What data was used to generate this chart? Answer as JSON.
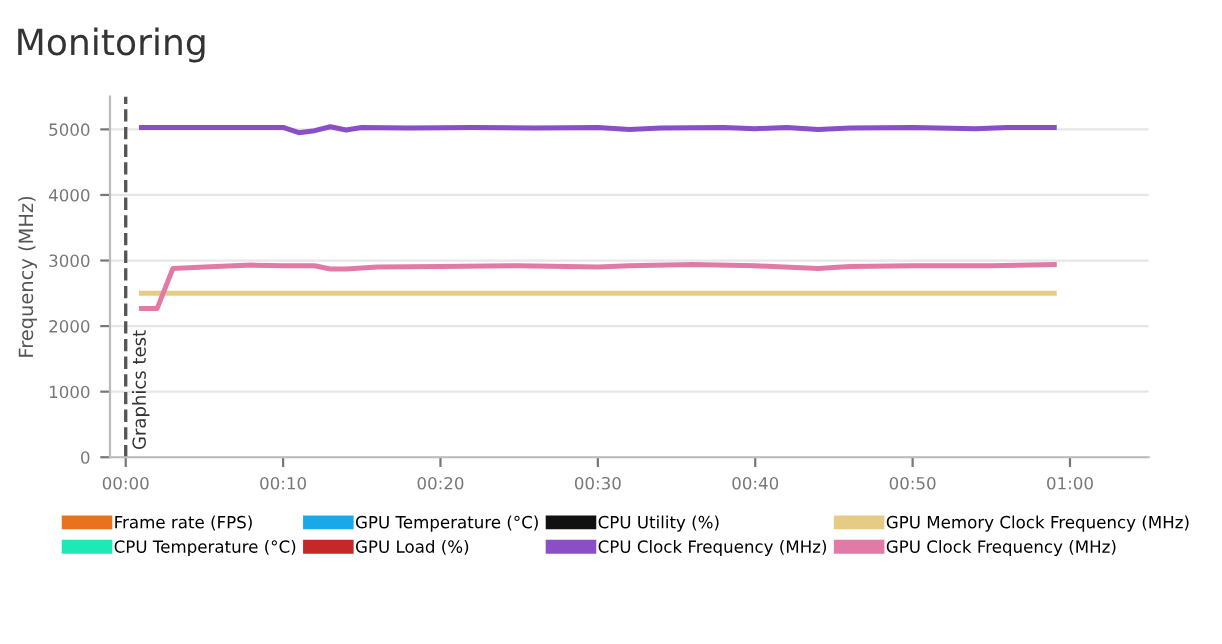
{
  "chart_data": {
    "type": "line",
    "title": "Monitoring",
    "ylabel": "Frequency (MHz)",
    "xlim": [
      -1,
      65
    ],
    "xticks": [
      {
        "value": 0,
        "label": "00:00"
      },
      {
        "value": 10,
        "label": "00:10"
      },
      {
        "value": 20,
        "label": "00:20"
      },
      {
        "value": 30,
        "label": "00:30"
      },
      {
        "value": 40,
        "label": "00:40"
      },
      {
        "value": 50,
        "label": "00:50"
      },
      {
        "value": 60,
        "label": "01:00"
      }
    ],
    "ylim": [
      0,
      5500
    ],
    "yticks": [
      0,
      1000,
      2000,
      3000,
      4000,
      5000
    ],
    "grid": "y",
    "legend": "bottom",
    "ref_lines": [
      {
        "axis": "x",
        "value": 0,
        "label": "Graphics test",
        "color": "#555555",
        "line_style": "dashed"
      }
    ],
    "series": [
      {
        "name": "Frame rate (FPS)",
        "color": "#e8731e"
      },
      {
        "name": "CPU Temperature (°C)",
        "color": "#1de9b6"
      },
      {
        "name": "GPU Temperature (°C)",
        "color": "#1aa9e8"
      },
      {
        "name": "GPU Load (%)",
        "color": "#c62828"
      },
      {
        "name": "CPU Utility (%)",
        "color": "#111111"
      },
      {
        "name": "CPU Clock Frequency (MHz)",
        "color": "#8a4fc7",
        "x": [
          1,
          5,
          10,
          11,
          12,
          13,
          14,
          15,
          18,
          22,
          26,
          30,
          32,
          34,
          38,
          40,
          42,
          44,
          46,
          50,
          54,
          56,
          59
        ],
        "values": [
          5030,
          5030,
          5030,
          4950,
          4980,
          5040,
          4990,
          5030,
          5020,
          5030,
          5020,
          5030,
          5000,
          5020,
          5030,
          5010,
          5030,
          5000,
          5020,
          5030,
          5010,
          5030,
          5030
        ]
      },
      {
        "name": "GPU Memory Clock Frequency (MHz)",
        "color": "#e6cb87",
        "x": [
          1,
          59
        ],
        "values": [
          2500,
          2500
        ]
      },
      {
        "name": "GPU Clock Frequency (MHz)",
        "color": "#e27aa7",
        "x": [
          1,
          2,
          3,
          5,
          8,
          10,
          12,
          13,
          14,
          16,
          20,
          25,
          30,
          32,
          36,
          40,
          44,
          46,
          50,
          55,
          59
        ],
        "values": [
          2270,
          2270,
          2880,
          2900,
          2930,
          2920,
          2920,
          2870,
          2870,
          2900,
          2910,
          2920,
          2900,
          2920,
          2940,
          2920,
          2880,
          2910,
          2920,
          2920,
          2940
        ]
      }
    ]
  }
}
